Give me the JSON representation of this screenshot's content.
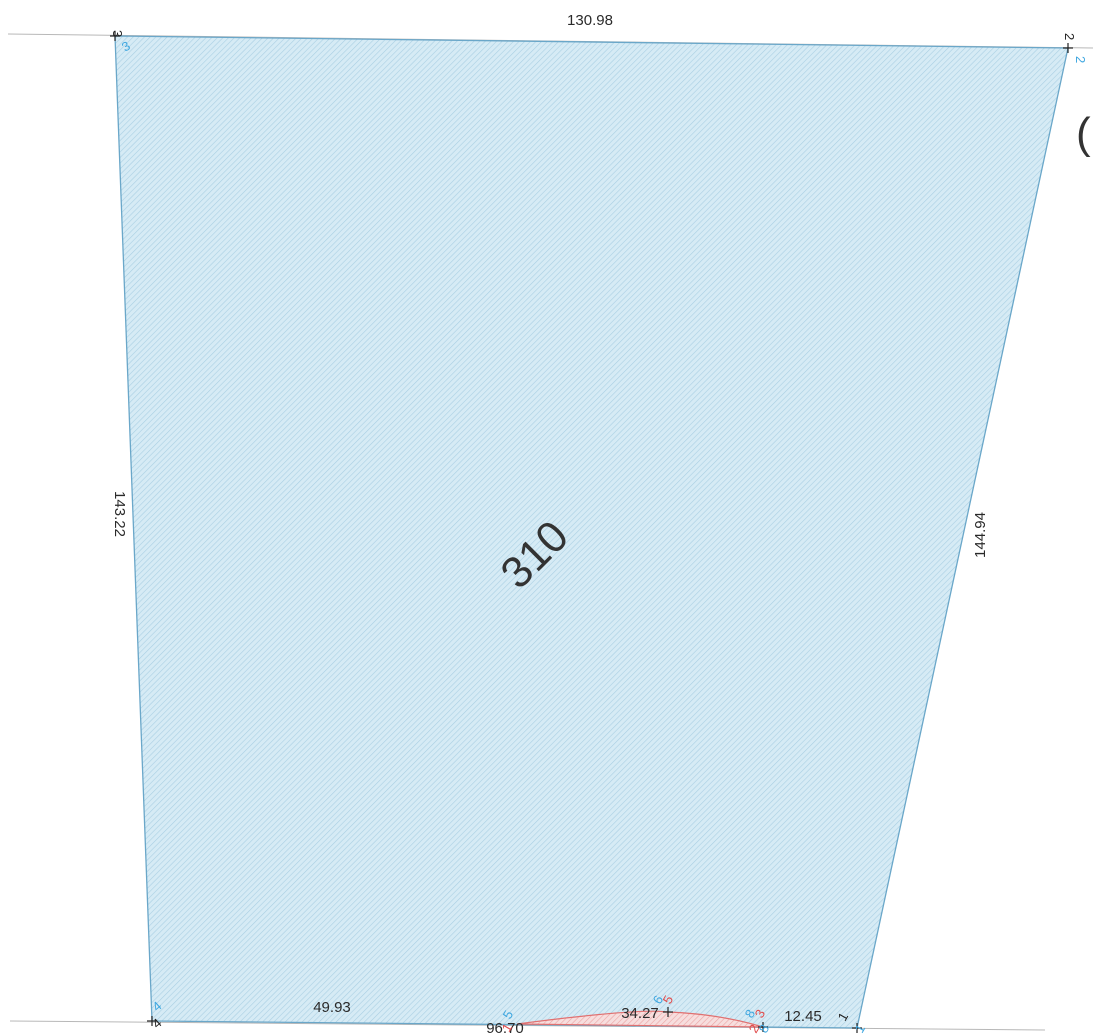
{
  "colors": {
    "parcel_fill": "#d6ebf5",
    "parcel_hatch": "#a9cfe3",
    "parcel_outline": "#6aa7c9",
    "overlap_fill": "#f5d3d3",
    "overlap_outline": "#e07070",
    "blue_label": "#3fa7e0",
    "red_label": "#e04a4a",
    "black_label": "#222222",
    "boundary_line": "#b8b8b8"
  },
  "parcel": {
    "number": "310"
  },
  "neighbor_partial_label": "(",
  "dimensions": {
    "top": "130.98",
    "left": "143.22",
    "right": "144.94",
    "bottom_left": "49.93",
    "bottom_total": "96.70",
    "bottom_middle": "34.27",
    "bottom_right": "12.45"
  },
  "vertices": {
    "v1_black": "1",
    "v1_blue": "1",
    "v2_black": "2",
    "v2_blue": "2",
    "v3_black": "3",
    "v3_blue": "3",
    "v4_black": "4",
    "v4_blue": "4",
    "v5_blue": "5",
    "v5_red": "1",
    "v6_blue": "6",
    "v6_red": "5",
    "v7_red": "3",
    "v7_blue_a": "8",
    "v7_red_b": "2",
    "v7_blue_b": "8"
  },
  "icons": {
    "vertex_marker": "plus-cross-icon"
  }
}
